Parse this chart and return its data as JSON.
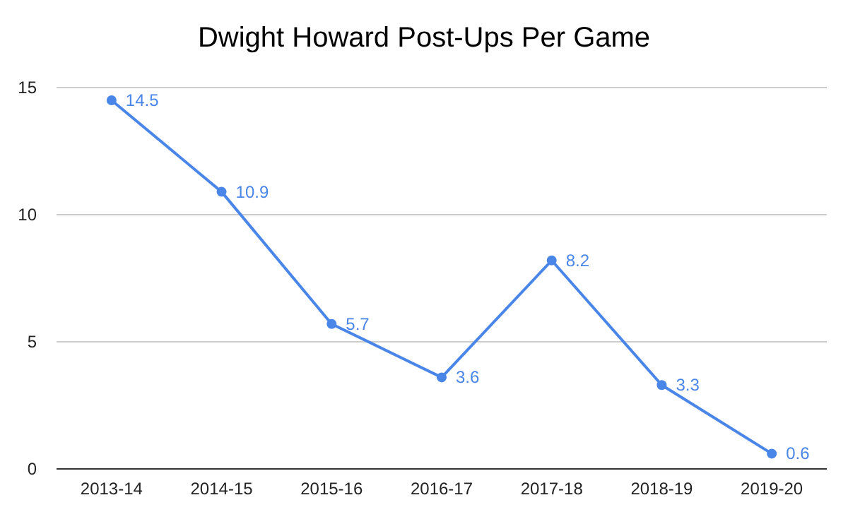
{
  "chart_data": {
    "type": "line",
    "title": "Dwight Howard Post-Ups Per Game",
    "categories": [
      "2013-14",
      "2014-15",
      "2015-16",
      "2016-17",
      "2017-18",
      "2018-19",
      "2019-20"
    ],
    "series": [
      {
        "color": "#4a86e8",
        "values": [
          14.5,
          10.9,
          5.7,
          3.6,
          8.2,
          3.3,
          0.6
        ]
      }
    ],
    "ylim": [
      0,
      15
    ],
    "yticks": [
      0,
      5,
      10,
      15
    ],
    "grid": "y",
    "marker": "circle",
    "data_labels": true
  }
}
